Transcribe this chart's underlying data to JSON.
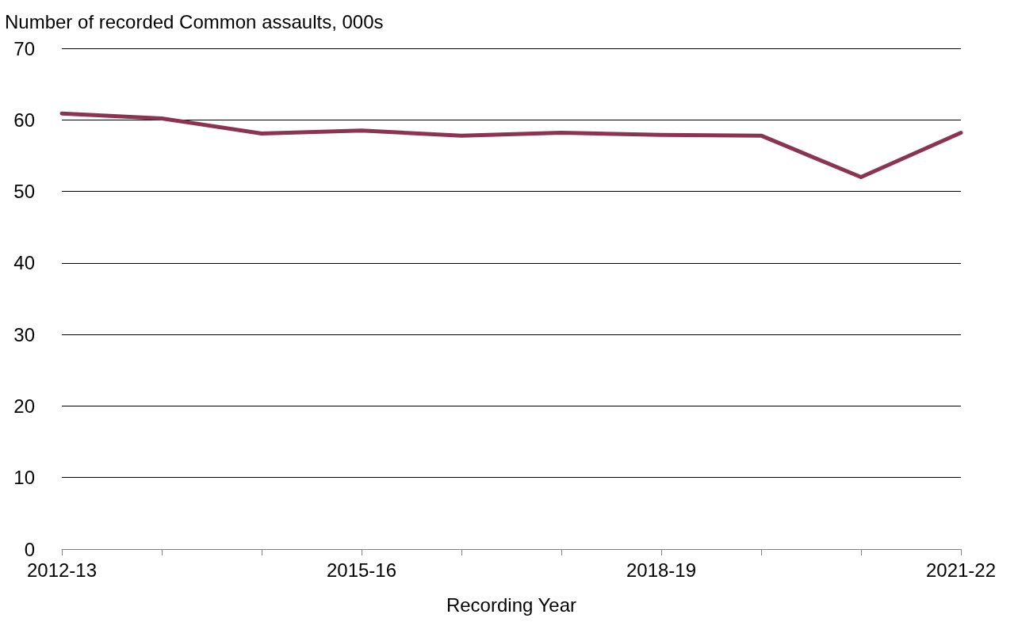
{
  "chart_data": {
    "type": "line",
    "ylabel": "Number of recorded Common assaults, 000s",
    "xlabel": "Recording Year",
    "categories": [
      "2012-13",
      null,
      null,
      "2015-16",
      null,
      null,
      "2018-19",
      null,
      null,
      "2021-22"
    ],
    "series": [
      {
        "color": "#8b3350",
        "values": [
          60.9,
          60.2,
          58.1,
          58.5,
          57.8,
          58.2,
          57.9,
          57.8,
          52.0,
          58.2
        ]
      }
    ],
    "ylim": [
      0,
      70
    ],
    "yticks": [
      0,
      10,
      20,
      30,
      40,
      50,
      60,
      70
    ],
    "grid": "y",
    "marker": "none",
    "line_style": "solid"
  }
}
